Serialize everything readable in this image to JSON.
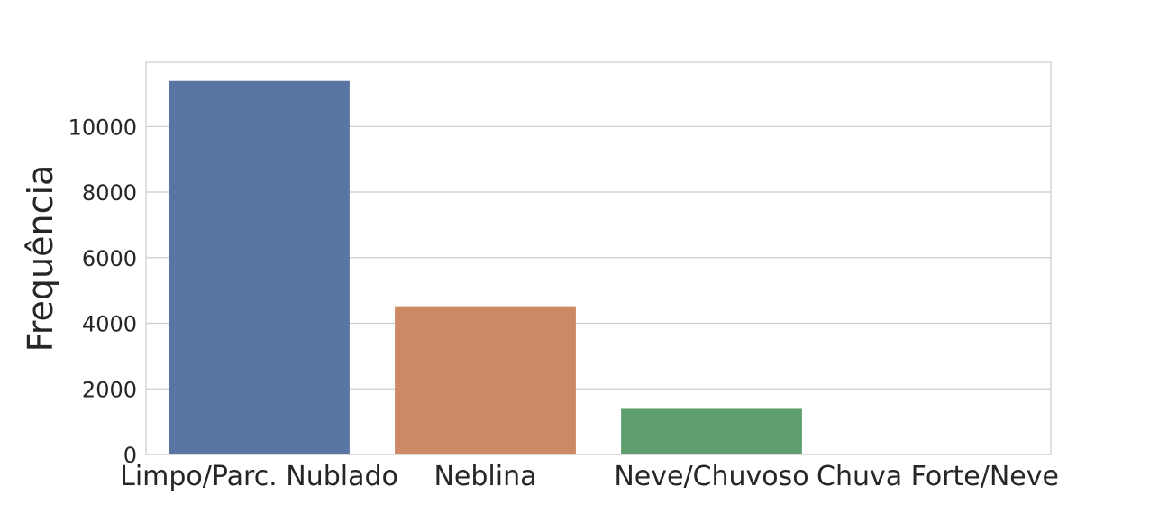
{
  "chart_data": {
    "type": "bar",
    "title": "",
    "xlabel": "",
    "ylabel": "Frequência",
    "categories": [
      "Limpo/Parc. Nublado",
      "Neblina",
      "Neve/Chuvoso",
      "Chuva Forte/Neve"
    ],
    "values": [
      11390,
      4520,
      1390,
      3
    ],
    "colors": [
      "#5975a4",
      "#cc8963",
      "#5f9e6e",
      "#b55d60"
    ],
    "ylim": [
      0,
      11960
    ],
    "yticks": [
      0,
      2000,
      4000,
      6000,
      8000,
      10000
    ],
    "grid": true,
    "legend": "none",
    "gridline_color": "#cccccc",
    "frame_color": "#cccccc"
  }
}
